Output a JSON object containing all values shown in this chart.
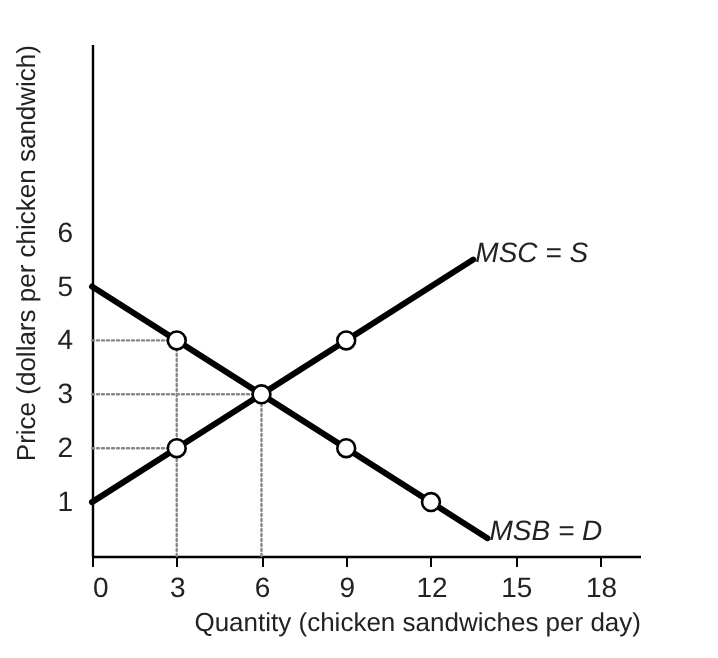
{
  "chart_data": {
    "type": "line",
    "xlabel": "Quantity (chicken sandwiches per day)",
    "ylabel": "Price (dollars per chicken sandwich)",
    "xlim": [
      0,
      19.4
    ],
    "ylim": [
      0,
      9.5
    ],
    "xticks": [
      0,
      3,
      6,
      9,
      12,
      15,
      18
    ],
    "yticks": [
      1,
      2,
      3,
      4,
      5,
      6
    ],
    "series": [
      {
        "name": "MSC = S",
        "color": "#000000",
        "marker": "none",
        "line_style": "solid",
        "x": [
          0,
          13.5
        ],
        "values": [
          1,
          5.5
        ]
      },
      {
        "name": "MSB = D",
        "color": "#000000",
        "marker": "none",
        "line_style": "solid",
        "x": [
          0,
          14
        ],
        "values": [
          5,
          0.33
        ]
      },
      {
        "color": "#888888",
        "marker": "none",
        "line_style": "dotted",
        "x": [
          0,
          3
        ],
        "values": [
          4,
          4
        ]
      },
      {
        "color": "#888888",
        "marker": "none",
        "line_style": "dotted",
        "x": [
          0,
          6
        ],
        "values": [
          3,
          3
        ]
      },
      {
        "color": "#888888",
        "marker": "none",
        "line_style": "dotted",
        "x": [
          0,
          3
        ],
        "values": [
          2,
          2
        ]
      },
      {
        "color": "#888888",
        "marker": "none",
        "line_style": "dotted",
        "x": [
          3,
          3
        ],
        "values": [
          0,
          4
        ]
      },
      {
        "color": "#888888",
        "marker": "none",
        "line_style": "dotted",
        "x": [
          6,
          6
        ],
        "values": [
          0,
          3
        ]
      },
      {
        "color": "#000000",
        "type": "scatter",
        "marker": "circle",
        "x": [
          3,
          6,
          9,
          3,
          9,
          12
        ],
        "values": [
          2,
          3,
          4,
          4,
          2,
          1
        ]
      }
    ]
  }
}
